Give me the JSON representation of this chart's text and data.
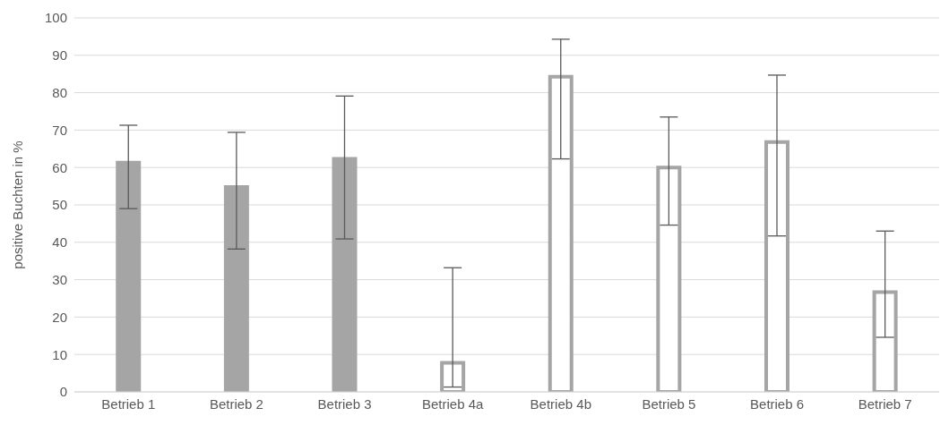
{
  "chart_data": {
    "type": "bar",
    "ylabel": "positive Buchten in %",
    "categories": [
      "Betrieb 1",
      "Betrieb 2",
      "Betrieb 3",
      "Betrieb 4a",
      "Betrieb 4b",
      "Betrieb 5",
      "Betrieb 6",
      "Betrieb 7"
    ],
    "series": [
      {
        "color": "#a5a5a5",
        "colors": [
          "#a5a5a5",
          "#a5a5a5",
          "#a5a5a5",
          "#ffffff",
          "#ffffff",
          "#ffffff",
          "#ffffff",
          "#ffffff"
        ],
        "values": [
          61.3,
          54.8,
          62.3,
          7.8,
          84.3,
          60,
          66.8,
          26.7
        ],
        "errors": [
          [
            49,
            71.3
          ],
          [
            38.2,
            69.4
          ],
          [
            40.9,
            79.1
          ],
          [
            1.3,
            33.2
          ],
          [
            62.3,
            94.3
          ],
          [
            44.6,
            73.5
          ],
          [
            41.7,
            84.7
          ],
          [
            14.6,
            43
          ]
        ]
      }
    ],
    "ylim": [
      0,
      100
    ],
    "yticks": [
      0,
      10,
      20,
      30,
      40,
      50,
      60,
      70,
      80,
      90,
      100
    ],
    "grid": "y",
    "legend": false
  }
}
